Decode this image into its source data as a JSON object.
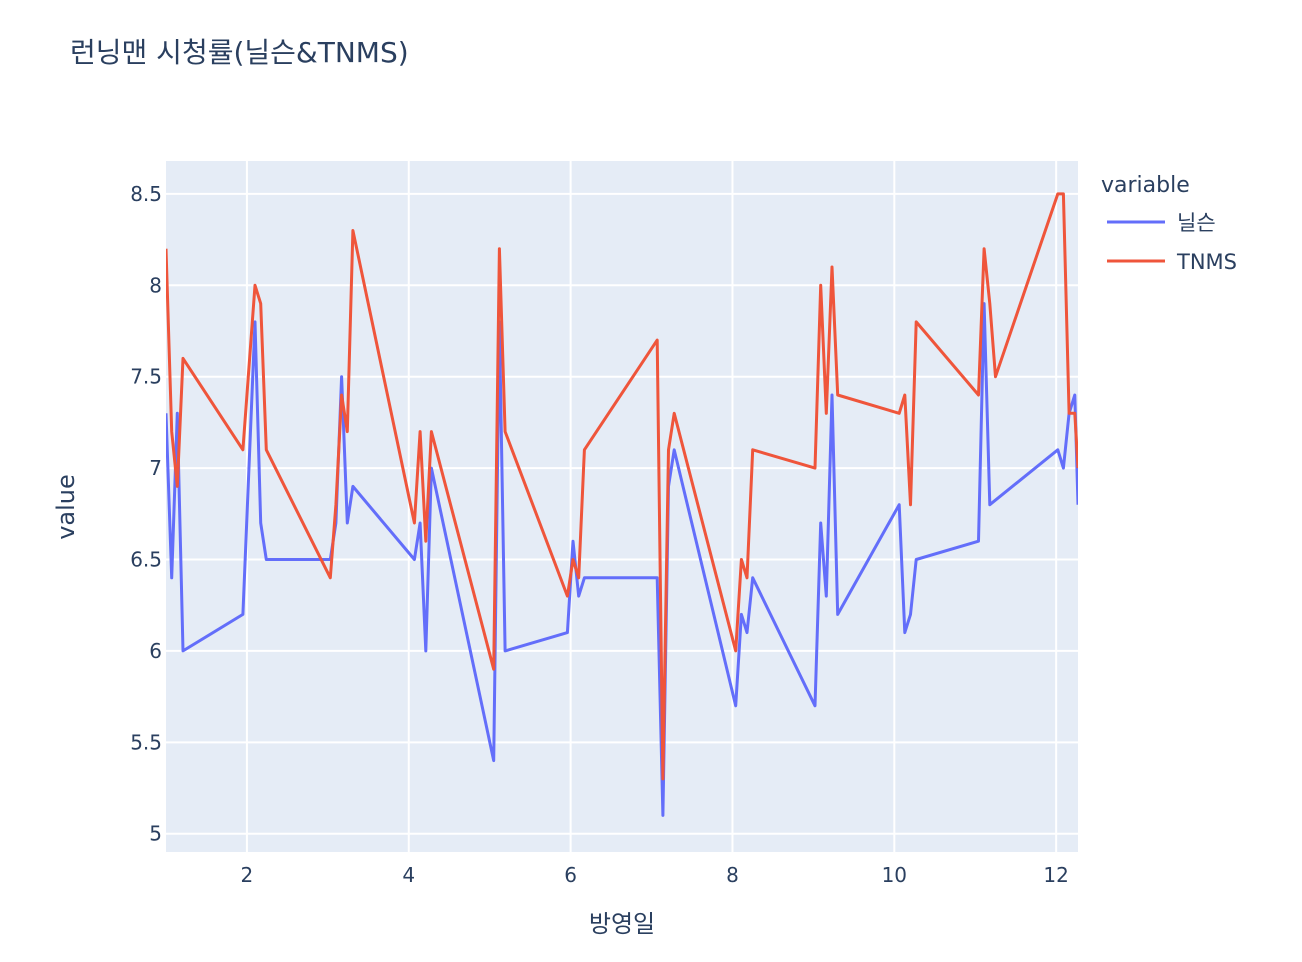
{
  "chart_data": {
    "type": "line",
    "title": "런닝맨 시청률(닐슨&TNMS)",
    "xlabel": "방영일",
    "ylabel": "value",
    "xlim": [
      1.0,
      12.27
    ],
    "ylim": [
      4.9,
      8.68
    ],
    "x_ticks": [
      2,
      4,
      6,
      8,
      10,
      12
    ],
    "y_ticks": [
      5,
      5.5,
      6,
      6.5,
      7,
      7.5,
      8,
      8.5
    ],
    "y_tick_labels": [
      "5",
      "5.5",
      "6",
      "6.5",
      "7",
      "7.5",
      "8",
      "8.5"
    ],
    "grid": true,
    "legend": {
      "title": "variable",
      "position": "top-right"
    },
    "series": [
      {
        "name": "닐슨",
        "color": "#636efa",
        "points": [
          [
            1.0,
            7.3
          ],
          [
            1.07,
            6.4
          ],
          [
            1.14,
            7.3
          ],
          [
            1.21,
            6.0
          ],
          [
            1.95,
            6.2
          ],
          [
            2.1,
            7.8
          ],
          [
            2.17,
            6.7
          ],
          [
            2.24,
            6.5
          ],
          [
            3.03,
            6.5
          ],
          [
            3.1,
            6.7
          ],
          [
            3.17,
            7.5
          ],
          [
            3.24,
            6.7
          ],
          [
            3.31,
            6.9
          ],
          [
            4.07,
            6.5
          ],
          [
            4.14,
            6.7
          ],
          [
            4.21,
            6.0
          ],
          [
            4.28,
            7.0
          ],
          [
            5.05,
            5.4
          ],
          [
            5.12,
            7.8
          ],
          [
            5.19,
            6.0
          ],
          [
            5.96,
            6.1
          ],
          [
            6.03,
            6.6
          ],
          [
            6.1,
            6.3
          ],
          [
            6.17,
            6.4
          ],
          [
            7.07,
            6.4
          ],
          [
            7.14,
            5.1
          ],
          [
            7.21,
            6.9
          ],
          [
            7.28,
            7.1
          ],
          [
            8.04,
            5.7
          ],
          [
            8.11,
            6.2
          ],
          [
            8.18,
            6.1
          ],
          [
            8.25,
            6.4
          ],
          [
            9.02,
            5.7
          ],
          [
            9.09,
            6.7
          ],
          [
            9.16,
            6.3
          ],
          [
            9.23,
            7.4
          ],
          [
            9.3,
            6.2
          ],
          [
            10.06,
            6.8
          ],
          [
            10.13,
            6.1
          ],
          [
            10.2,
            6.2
          ],
          [
            10.27,
            6.5
          ],
          [
            11.04,
            6.6
          ],
          [
            11.11,
            7.9
          ],
          [
            11.18,
            6.8
          ],
          [
            12.02,
            7.1
          ],
          [
            12.09,
            7.0
          ],
          [
            12.16,
            7.3
          ],
          [
            12.23,
            7.4
          ],
          [
            12.27,
            6.8
          ]
        ]
      },
      {
        "name": "TNMS",
        "color": "#ef553b",
        "points": [
          [
            1.0,
            8.2
          ],
          [
            1.07,
            7.2
          ],
          [
            1.14,
            6.9
          ],
          [
            1.21,
            7.6
          ],
          [
            1.95,
            7.1
          ],
          [
            2.1,
            8.0
          ],
          [
            2.17,
            7.9
          ],
          [
            2.24,
            7.1
          ],
          [
            3.03,
            6.4
          ],
          [
            3.1,
            6.8
          ],
          [
            3.17,
            7.4
          ],
          [
            3.24,
            7.2
          ],
          [
            3.31,
            8.3
          ],
          [
            4.07,
            6.7
          ],
          [
            4.14,
            7.2
          ],
          [
            4.21,
            6.6
          ],
          [
            4.28,
            7.2
          ],
          [
            5.05,
            5.9
          ],
          [
            5.12,
            8.2
          ],
          [
            5.19,
            7.2
          ],
          [
            5.96,
            6.3
          ],
          [
            6.03,
            6.5
          ],
          [
            6.1,
            6.4
          ],
          [
            6.17,
            7.1
          ],
          [
            7.07,
            7.7
          ],
          [
            7.14,
            5.3
          ],
          [
            7.21,
            7.1
          ],
          [
            7.28,
            7.3
          ],
          [
            8.04,
            6.0
          ],
          [
            8.11,
            6.5
          ],
          [
            8.18,
            6.4
          ],
          [
            8.25,
            7.1
          ],
          [
            9.02,
            7.0
          ],
          [
            9.09,
            8.0
          ],
          [
            9.16,
            7.3
          ],
          [
            9.23,
            8.1
          ],
          [
            9.3,
            7.4
          ],
          [
            10.06,
            7.3
          ],
          [
            10.13,
            7.4
          ],
          [
            10.2,
            6.8
          ],
          [
            10.27,
            7.8
          ],
          [
            11.04,
            7.4
          ],
          [
            11.11,
            8.2
          ],
          [
            11.18,
            7.9
          ],
          [
            11.25,
            7.5
          ],
          [
            12.02,
            8.5
          ],
          [
            12.09,
            8.5
          ],
          [
            12.16,
            7.3
          ],
          [
            12.23,
            7.3
          ],
          [
            12.27,
            7.0
          ]
        ]
      }
    ]
  }
}
